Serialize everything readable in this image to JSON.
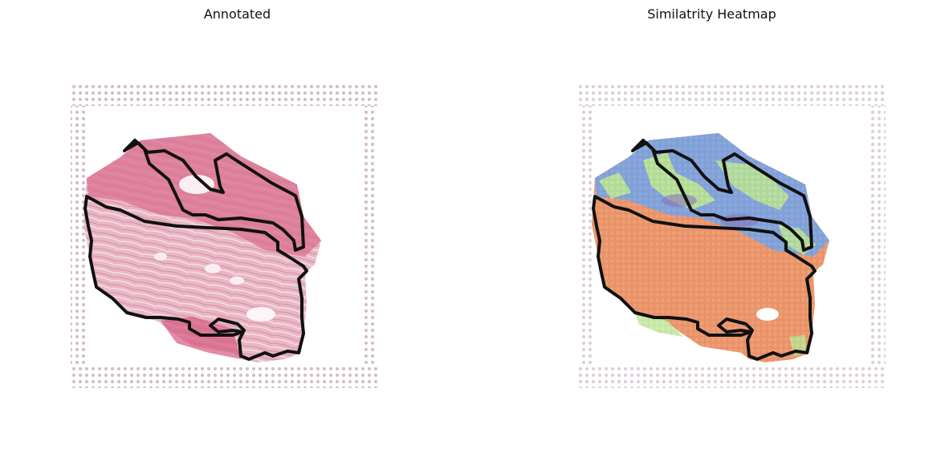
{
  "panels": {
    "left": {
      "title": "Annotated"
    },
    "right": {
      "title": "Similatrity Heatmap"
    }
  },
  "colors": {
    "tissue": "#d7728d",
    "tissue_light": "#ecc6d2",
    "fiducial": "#c8aebf",
    "outline": "#111111",
    "heat_high": "#e8926a",
    "heat_mid": "#b6e08e",
    "heat_low": "#7f9fd6",
    "heat_lowest": "#8a6bb8"
  }
}
